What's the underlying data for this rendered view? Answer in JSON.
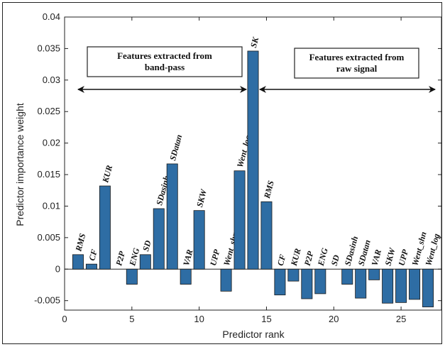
{
  "chart_data": {
    "type": "bar",
    "xlabel": "Predictor rank",
    "ylabel": "Predictor importance weight",
    "xlim": [
      0,
      28
    ],
    "ylim": [
      -0.0065,
      0.04
    ],
    "xticks": [
      0,
      5,
      10,
      15,
      20,
      25
    ],
    "yticks": [
      -0.005,
      0,
      0.005,
      0.01,
      0.015,
      0.02,
      0.025,
      0.03,
      0.035,
      0.04
    ],
    "ytick_labels": [
      "-0.005",
      "0",
      "0.005",
      "0.01",
      "0.015",
      "0.02",
      "0.025",
      "0.03",
      "0.035",
      "0.04"
    ],
    "bar_color": "#2e6da4",
    "grid": false,
    "bars": [
      {
        "x": 1,
        "value": 0.0023,
        "label": "RMS"
      },
      {
        "x": 2,
        "value": 0.0008,
        "label": "CF"
      },
      {
        "x": 3,
        "value": 0.0132,
        "label": "KUR"
      },
      {
        "x": 4,
        "value": 0.0,
        "label": "P2P"
      },
      {
        "x": 5,
        "value": -0.0024,
        "label": "ENG"
      },
      {
        "x": 6,
        "value": 0.0023,
        "label": "SD"
      },
      {
        "x": 7,
        "value": 0.0096,
        "label": "SDasinh"
      },
      {
        "x": 8,
        "value": 0.0167,
        "label": "SDatan"
      },
      {
        "x": 9,
        "value": -0.0024,
        "label": "VAR"
      },
      {
        "x": 10,
        "value": 0.0093,
        "label": "SKW"
      },
      {
        "x": 11,
        "value": 0.0,
        "label": "UPP"
      },
      {
        "x": 12,
        "value": -0.0035,
        "label": "Went_shn"
      },
      {
        "x": 13,
        "value": 0.0156,
        "label": "Went_log"
      },
      {
        "x": 14,
        "value": 0.0346,
        "label": "SK"
      },
      {
        "x": 15,
        "value": 0.0107,
        "label": "RMS"
      },
      {
        "x": 16,
        "value": -0.0041,
        "label": "CF"
      },
      {
        "x": 17,
        "value": -0.0019,
        "label": "KUR"
      },
      {
        "x": 18,
        "value": -0.0047,
        "label": "P2P"
      },
      {
        "x": 19,
        "value": -0.0039,
        "label": "ENG"
      },
      {
        "x": 20,
        "value": 0.0,
        "label": "SD"
      },
      {
        "x": 21,
        "value": -0.0024,
        "label": "SDasinh"
      },
      {
        "x": 22,
        "value": -0.0046,
        "label": "SDatan"
      },
      {
        "x": 23,
        "value": -0.0017,
        "label": "VAR"
      },
      {
        "x": 24,
        "value": -0.0054,
        "label": "SKW"
      },
      {
        "x": 25,
        "value": -0.0053,
        "label": "UPP"
      },
      {
        "x": 26,
        "value": -0.0048,
        "label": "Went_shn"
      },
      {
        "x": 27,
        "value": -0.006,
        "label": "Went_log"
      }
    ],
    "annotations": [
      {
        "text_lines": [
          "Features extracted from",
          "band-pass"
        ],
        "range": [
          1,
          13.5
        ]
      },
      {
        "text_lines": [
          "Features extracted from",
          "raw signal"
        ],
        "range": [
          14.5,
          27
        ]
      }
    ]
  }
}
